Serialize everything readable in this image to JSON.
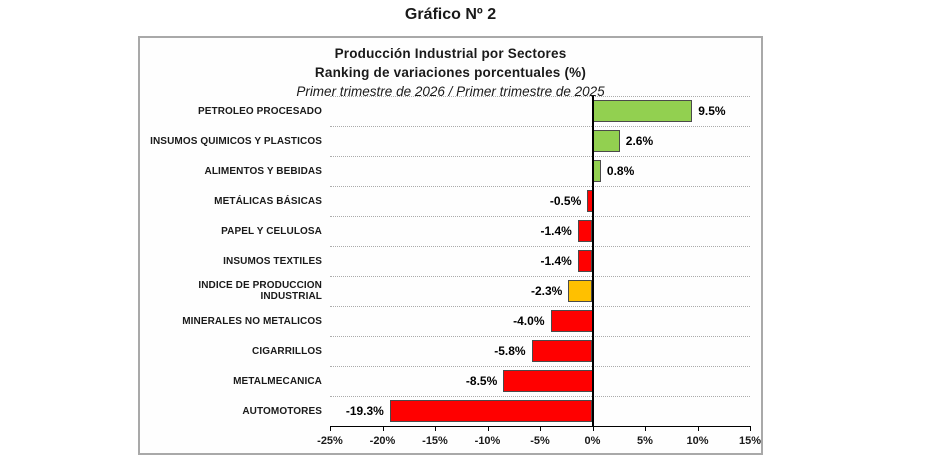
{
  "page_title": "Gráfico Nº 2",
  "chart": {
    "title_line1": "Producción  Industrial  por Sectores",
    "title_line2": "Ranking de variaciones porcentuales (%)",
    "subtitle": "Primer trimestre de 2026 / Primer trimestre de 2025"
  },
  "colors": {
    "positive_fill": "#92D050",
    "negative_fill": "#FF0000",
    "index_fill": "#FFC000",
    "bar_border": "#4a4a4a",
    "zero_line": "#000000",
    "gridline": "#ababab",
    "box_border": "#a9a9a9"
  },
  "chart_data": {
    "type": "bar",
    "orientation": "horizontal",
    "title": "Producción Industrial por Sectores — Ranking de variaciones porcentuales (%)",
    "subtitle": "Primer trimestre de 2026 / Primer trimestre de 2025",
    "categories": [
      "PETROLEO PROCESADO",
      "INSUMOS QUIMICOS Y PLASTICOS",
      "ALIMENTOS Y BEBIDAS",
      "METÁLICAS BÁSICAS",
      "PAPEL Y CELULOSA",
      "INSUMOS TEXTILES",
      "INDICE DE PRODUCCION INDUSTRIAL",
      "MINERALES NO METALICOS",
      "CIGARRILLOS",
      "METALMECANICA",
      "AUTOMOTORES"
    ],
    "values": [
      9.5,
      2.6,
      0.8,
      -0.5,
      -1.4,
      -1.4,
      -2.3,
      -4.0,
      -5.8,
      -8.5,
      -19.3
    ],
    "value_labels": [
      "9.5%",
      "2.6%",
      "0.8%",
      "-0.5%",
      "-1.4%",
      "-1.4%",
      "-2.3%",
      "-4.0%",
      "-5.8%",
      "-8.5%",
      "-19.3%"
    ],
    "bar_colors": [
      "#92D050",
      "#92D050",
      "#92D050",
      "#FF0000",
      "#FF0000",
      "#FF0000",
      "#FFC000",
      "#FF0000",
      "#FF0000",
      "#FF0000",
      "#FF0000"
    ],
    "xlim": [
      -25,
      15
    ],
    "xticks": [
      -25,
      -20,
      -15,
      -10,
      -5,
      0,
      5,
      10,
      15
    ],
    "xtick_labels": [
      "-25%",
      "-20%",
      "-15%",
      "-10%",
      "-5%",
      "0%",
      "5%",
      "10%",
      "15%"
    ],
    "grid": "horizontal-dotted",
    "legend": "none"
  }
}
